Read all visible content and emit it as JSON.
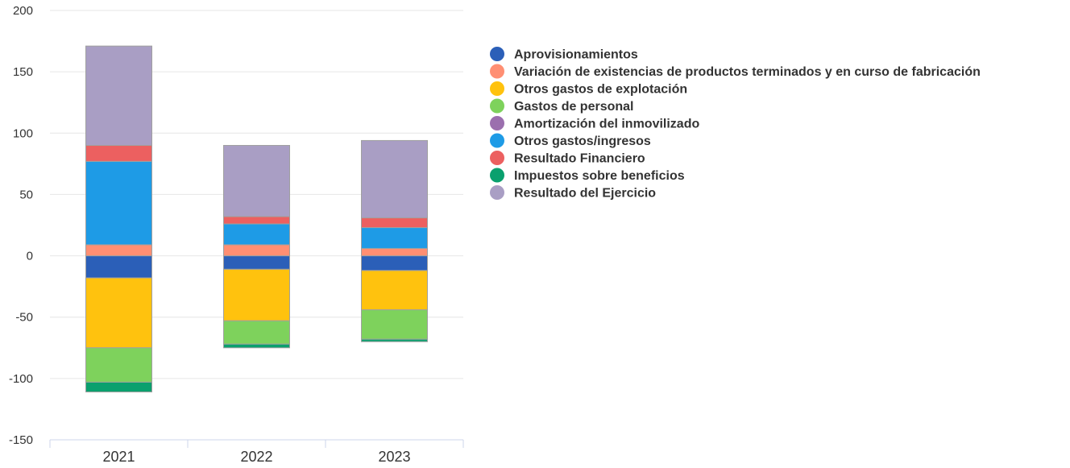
{
  "chart_data": {
    "type": "bar",
    "stacked": true,
    "categories": [
      "2021",
      "2022",
      "2023"
    ],
    "ylim": [
      -150,
      200
    ],
    "yticks": [
      -150,
      -100,
      -50,
      0,
      50,
      100,
      150,
      200
    ],
    "grid": true,
    "legend_position": "right",
    "series": [
      {
        "name": "Aprovisionamientos",
        "color": "#2b5fb8",
        "values": [
          -18,
          -11,
          -12
        ]
      },
      {
        "name": "Variación de existencias de productos terminados y en curso de fabricación",
        "color": "#ff8f73",
        "values": [
          9,
          9,
          6
        ]
      },
      {
        "name": "Otros gastos de explotación",
        "color": "#ffc20e",
        "values": [
          -57,
          -42,
          -32
        ]
      },
      {
        "name": "Gastos de personal",
        "color": "#7ed25c",
        "values": [
          -28,
          -19,
          -24
        ]
      },
      {
        "name": "Amortización del inmovilizado",
        "color": "#9b6fae",
        "values": [
          0,
          0,
          0
        ]
      },
      {
        "name": "Otros gastos/ingresos",
        "color": "#1e9be6",
        "values": [
          68,
          17,
          17
        ]
      },
      {
        "name": "Resultado Financiero",
        "color": "#ec6060",
        "values": [
          13,
          6,
          8
        ]
      },
      {
        "name": "Impuestos sobre beneficios",
        "color": "#0aa06e",
        "values": [
          -8,
          -3,
          -2
        ]
      },
      {
        "name": "Resultado del Ejercicio",
        "color": "#a99ec4",
        "values": [
          81,
          58,
          63
        ]
      }
    ]
  }
}
